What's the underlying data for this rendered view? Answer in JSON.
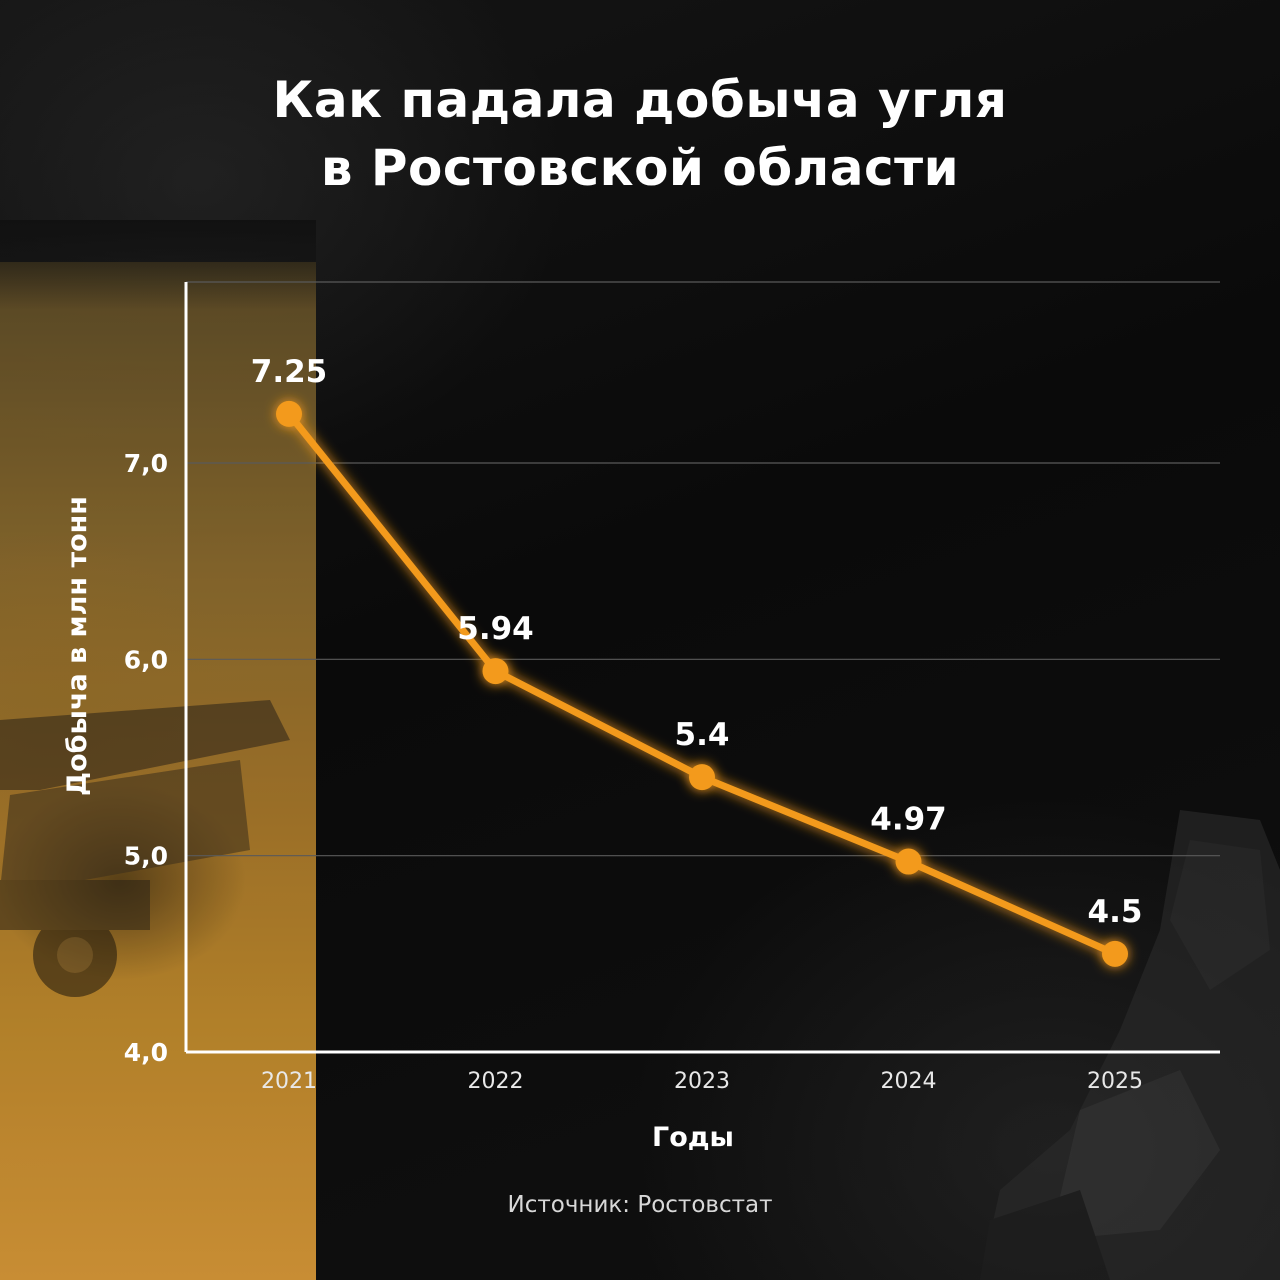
{
  "title_line1": "Как падала добыча угля",
  "title_line2": "в Ростовской области",
  "source": "Источник: Ростовстат",
  "accent_color": "#f39a1e",
  "chart_data": {
    "type": "line",
    "x": [
      "2021",
      "2022",
      "2023",
      "2024",
      "2025"
    ],
    "series": [
      {
        "values": [
          7.25,
          5.94,
          5.4,
          4.97,
          4.5
        ]
      }
    ],
    "data_labels": [
      "7.25",
      "5.94",
      "5.4",
      "4.97",
      "4.5"
    ],
    "yticks": [
      4.0,
      5.0,
      6.0,
      7.0
    ],
    "ytick_labels": [
      "4,0",
      "5,0",
      "6,0",
      "7,0"
    ],
    "ylim": [
      4.0,
      8.0
    ],
    "xlabel": "Годы",
    "ylabel": "Добыча в млн тонн",
    "grid": true,
    "legend": "none"
  }
}
